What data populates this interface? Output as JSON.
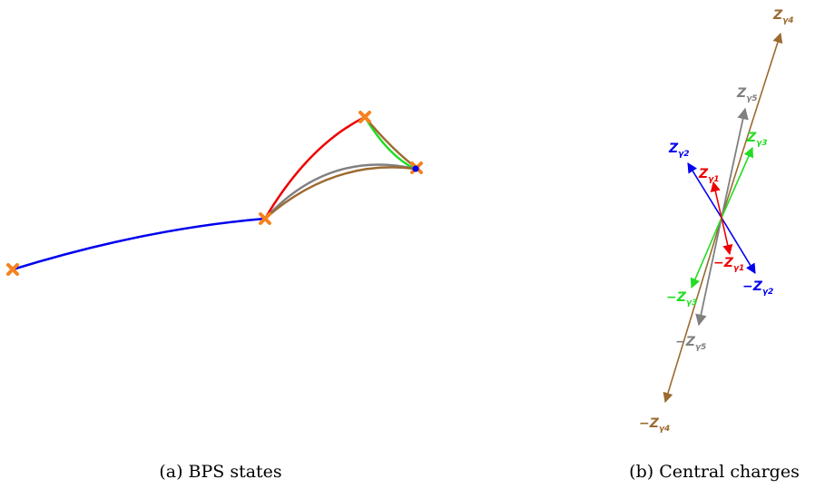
{
  "captions": {
    "left": "(a) BPS states",
    "right": "(b) Central charges"
  },
  "colors": {
    "orange": "#f5821f",
    "blue": "#0000ee",
    "red": "#ee0000",
    "green": "#22dd22",
    "gray": "#808080",
    "brown": "#9c6a30"
  },
  "central_charges": [
    {
      "name": "gamma1",
      "color": "red",
      "pos": {
        "main": "Z",
        "sub": "γ1"
      },
      "neg": {
        "main": "−Z",
        "sub": "γ1"
      }
    },
    {
      "name": "gamma2",
      "color": "blue",
      "pos": {
        "main": "Z",
        "sub": "γ2"
      },
      "neg": {
        "main": "−Z",
        "sub": "γ2"
      }
    },
    {
      "name": "gamma3",
      "color": "green",
      "pos": {
        "main": "Z",
        "sub": "γ3"
      },
      "neg": {
        "main": "−Z",
        "sub": "γ3"
      }
    },
    {
      "name": "gamma4",
      "color": "brown",
      "pos": {
        "main": "Z",
        "sub": "γ4"
      },
      "neg": {
        "main": "−Z",
        "sub": "γ4"
      }
    },
    {
      "name": "gamma5",
      "color": "gray",
      "pos": {
        "main": "Z",
        "sub": "γ5"
      },
      "neg": {
        "main": "−Z",
        "sub": "γ5"
      }
    }
  ]
}
